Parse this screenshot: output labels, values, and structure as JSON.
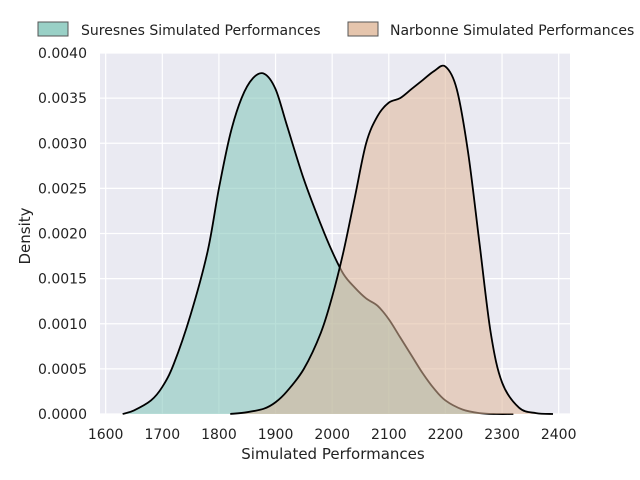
{
  "chart_data": {
    "type": "area",
    "title": "",
    "xlabel": "Simulated Performances",
    "ylabel": "Density",
    "xlim": [
      1590,
      2420
    ],
    "ylim": [
      0,
      0.004
    ],
    "x_ticks": [
      1600,
      1700,
      1800,
      1900,
      2000,
      2100,
      2200,
      2300,
      2400
    ],
    "y_ticks": [
      0,
      0.0005,
      0.001,
      0.0015,
      0.002,
      0.0025,
      0.003,
      0.0035,
      0.004
    ],
    "x_tick_labels": [
      "1600",
      "1700",
      "1800",
      "1900",
      "2000",
      "2100",
      "2200",
      "2300",
      "2400"
    ],
    "y_tick_labels": [
      "0.0000",
      "0.0005",
      "0.0010",
      "0.0015",
      "0.0020",
      "0.0025",
      "0.0030",
      "0.0035",
      "0.0040"
    ],
    "grid": true,
    "legend_position": "top",
    "background_color": "#eaeaf2",
    "series": [
      {
        "name": "Suresnes Simulated Performances",
        "fill_color": "#7fc4b8",
        "x": [
          1630,
          1650,
          1680,
          1700,
          1720,
          1750,
          1780,
          1800,
          1820,
          1840,
          1860,
          1880,
          1900,
          1920,
          1950,
          1980,
          2000,
          2020,
          2040,
          2060,
          2080,
          2100,
          2120,
          2140,
          2160,
          2180,
          2200,
          2230,
          2260,
          2290,
          2320
        ],
        "values": [
          0.0,
          4e-05,
          0.00015,
          0.0003,
          0.00055,
          0.0011,
          0.0018,
          0.0025,
          0.0031,
          0.0035,
          0.00372,
          0.00377,
          0.0036,
          0.0032,
          0.0026,
          0.0021,
          0.0018,
          0.00155,
          0.0014,
          0.00128,
          0.0012,
          0.00105,
          0.00085,
          0.00065,
          0.00045,
          0.00028,
          0.00015,
          5e-05,
          1e-05,
          0.0,
          0.0
        ]
      },
      {
        "name": "Narbonne Simulated Performances",
        "fill_color": "#deb799",
        "x": [
          1820,
          1850,
          1880,
          1900,
          1920,
          1950,
          1980,
          2000,
          2020,
          2040,
          2060,
          2080,
          2100,
          2120,
          2140,
          2160,
          2180,
          2200,
          2220,
          2240,
          2260,
          2280,
          2300,
          2330,
          2360,
          2390
        ],
        "values": [
          0.0,
          2e-05,
          6e-05,
          0.00013,
          0.00025,
          0.0005,
          0.0009,
          0.0013,
          0.0018,
          0.0024,
          0.003,
          0.0033,
          0.00345,
          0.0035,
          0.0036,
          0.0037,
          0.0038,
          0.00385,
          0.0036,
          0.0029,
          0.0019,
          0.0009,
          0.00035,
          7e-05,
          1e-05,
          0.0
        ]
      }
    ]
  }
}
